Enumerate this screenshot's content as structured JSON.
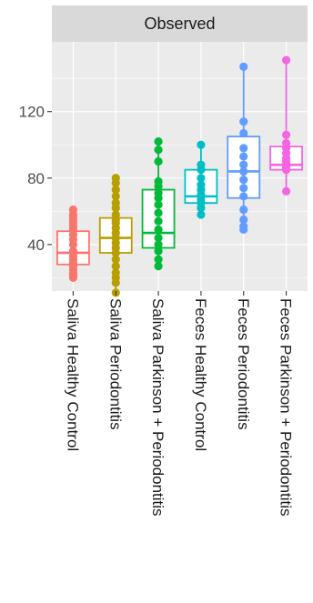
{
  "chart_data": {
    "type": "boxplot",
    "facet_label": "Observed",
    "ylim": [
      12,
      162
    ],
    "y_ticks": [
      40,
      80,
      120
    ],
    "grid": true,
    "categories": [
      "Saliva Healthy Control",
      "Saliva Periodontitis",
      "Saliva Parkinson + Periodontitis",
      "Feces Healthy Control",
      "Feces Periodontitis",
      "Feces Parkinson + Periodontitis"
    ],
    "series": [
      {
        "color": "#F8766D",
        "q1": 28,
        "median": 35,
        "q3": 48,
        "whisker_low": 20,
        "whisker_high": 61,
        "points": [
          61,
          58,
          57,
          55,
          53,
          51,
          49,
          46,
          43,
          40,
          36,
          33,
          31,
          29,
          27,
          25,
          23,
          22,
          21,
          20
        ]
      },
      {
        "color": "#B79F00",
        "q1": 35,
        "median": 44,
        "q3": 56,
        "whisker_low": 11,
        "whisker_high": 80,
        "points": [
          80,
          77,
          73,
          69,
          65,
          62,
          58,
          55,
          53,
          50,
          47,
          44,
          41,
          38,
          35,
          31,
          27,
          23,
          20,
          17,
          11
        ]
      },
      {
        "color": "#00BA38",
        "q1": 38,
        "median": 47,
        "q3": 73,
        "whisker_low": 27,
        "whisker_high": 102,
        "points": [
          102,
          97,
          90,
          78,
          75,
          71,
          68,
          64,
          59,
          54,
          49,
          44,
          40,
          36,
          31,
          27
        ]
      },
      {
        "color": "#00BFC4",
        "q1": 65,
        "median": 69,
        "q3": 85,
        "whisker_low": 58,
        "whisker_high": 100,
        "points": [
          100,
          88,
          85,
          80,
          76,
          73,
          70,
          67,
          65,
          62,
          58
        ]
      },
      {
        "color": "#619CFF",
        "q1": 68,
        "median": 84,
        "q3": 105,
        "whisker_low": 49,
        "whisker_high": 147,
        "points": [
          147,
          114,
          107,
          98,
          93,
          88,
          84,
          79,
          74,
          69,
          61,
          55,
          51,
          49
        ]
      },
      {
        "color": "#F564E3",
        "q1": 85,
        "median": 88,
        "q3": 99,
        "whisker_low": 72,
        "whisker_high": 151,
        "points": [
          151,
          106,
          101,
          98,
          95,
          92,
          90,
          88,
          87,
          86,
          85,
          72
        ]
      }
    ]
  }
}
